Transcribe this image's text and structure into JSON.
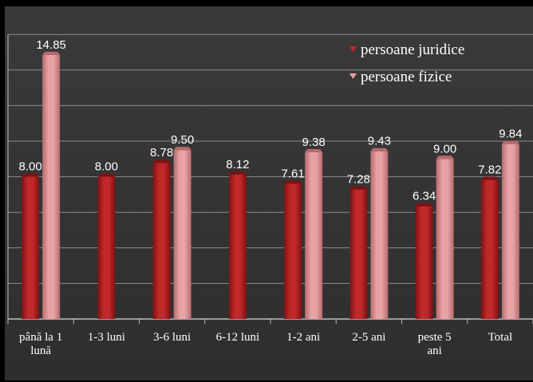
{
  "chart_data": {
    "type": "bar",
    "categories": [
      [
        "până la 1",
        "lună"
      ],
      [
        "1-3 luni"
      ],
      [
        "3-6 luni"
      ],
      [
        "6-12 luni"
      ],
      [
        "1-2 ani"
      ],
      [
        "2-5 ani"
      ],
      [
        "peste 5",
        "ani"
      ],
      [
        "Total"
      ]
    ],
    "series": [
      {
        "name": "persoane juridice",
        "values": [
          8.0,
          8.0,
          8.78,
          8.12,
          7.61,
          7.28,
          6.34,
          7.82
        ],
        "labels": [
          "8.00",
          "8.00",
          "8.78",
          "8.12",
          "7.61",
          "7.28",
          "6.34",
          "7.82"
        ],
        "color": "#c0282a",
        "color_dark": "#7d1214"
      },
      {
        "name": "persoane fizice",
        "values": [
          14.85,
          null,
          9.5,
          null,
          9.38,
          9.43,
          9.0,
          9.84
        ],
        "labels": [
          "14.85",
          null,
          "9.50",
          null,
          "9.38",
          "9.43",
          "9.00",
          "9.84"
        ],
        "color": "#e6a2a4",
        "color_dark": "#b86a6d"
      }
    ],
    "ylim": [
      0,
      16
    ],
    "grid": true,
    "legend_position": "top-right",
    "title": "",
    "xlabel": "",
    "ylabel": ""
  }
}
